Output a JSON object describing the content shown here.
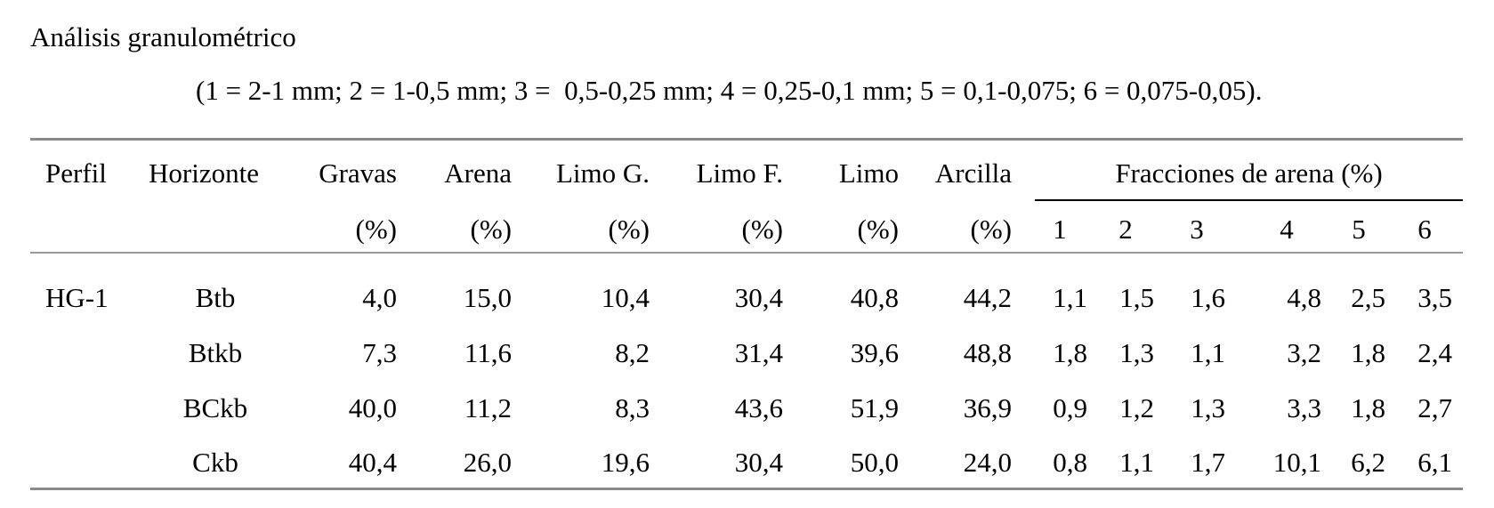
{
  "title": "Análisis granulométrico",
  "subtitle": "(1 = 2-1 mm; 2 = 1-0,5 mm; 3 =  0,5-0,25 mm; 4 = 0,25-0,1 mm; 5 = 0,1-0,075; 6 = 0,075-0,05).",
  "headers": {
    "perfil": "Perfil",
    "horizonte": "Horizonte",
    "gravas": "Gravas",
    "arena": "Arena",
    "limo_g": "Limo G.",
    "limo_f": "Limo F.",
    "limo": "Limo",
    "arcilla": "Arcilla",
    "fracciones": "Fracciones de arena (%)",
    "unit": "(%)",
    "fractions": [
      "1",
      "2",
      "3",
      "4",
      "5",
      "6"
    ]
  },
  "rows": [
    {
      "perfil": "HG-1",
      "horizonte": "Btb",
      "values": [
        "4,0",
        "15,0",
        "10,4",
        "30,4",
        "40,8",
        "44,2"
      ],
      "fractions": [
        "1,1",
        "1,5",
        "1,6",
        "4,8",
        "2,5",
        "3,5"
      ]
    },
    {
      "perfil": "",
      "horizonte": "Btkb",
      "values": [
        "7,3",
        "11,6",
        "8,2",
        "31,4",
        "39,6",
        "48,8"
      ],
      "fractions": [
        "1,8",
        "1,3",
        "1,1",
        "3,2",
        "1,8",
        "2,4"
      ]
    },
    {
      "perfil": "",
      "horizonte": "BCkb",
      "values": [
        "40,0",
        "11,2",
        "8,3",
        "43,6",
        "51,9",
        "36,9"
      ],
      "fractions": [
        "0,9",
        "1,2",
        "1,3",
        "3,3",
        "1,8",
        "2,7"
      ]
    },
    {
      "perfil": "",
      "horizonte": "Ckb",
      "values": [
        "40,4",
        "26,0",
        "19,6",
        "30,4",
        "50,0",
        "24,0"
      ],
      "fractions": [
        "0,8",
        "1,1",
        "1,7",
        "10,1",
        "6,2",
        "6,1"
      ]
    }
  ]
}
